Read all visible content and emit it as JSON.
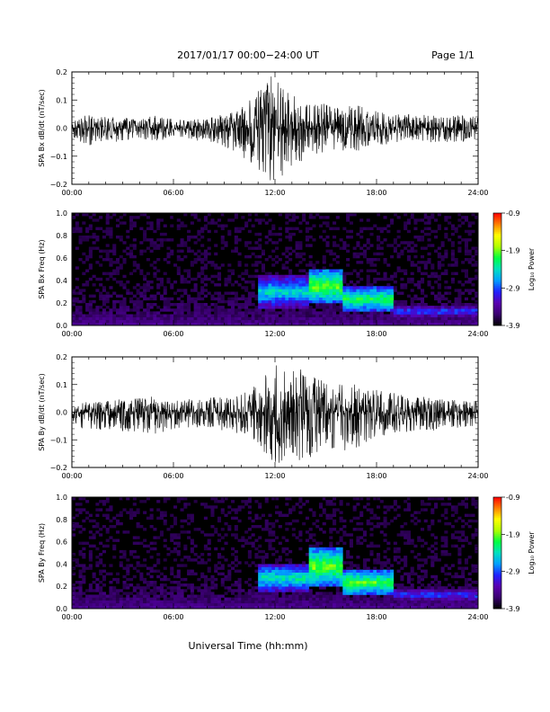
{
  "header": {
    "date_range": "2017/01/17  00:00−24:00 UT",
    "page": "Page 1/1"
  },
  "footer": {
    "xlabel": "Universal Time (hh:mm)"
  },
  "colors": {
    "trace": "#000000",
    "spec_background": "#000000",
    "colorbar": [
      "#000000",
      "#3a0070",
      "#5a00b0",
      "#2020ff",
      "#00a0ff",
      "#00e0c0",
      "#00ff40",
      "#b0ff00",
      "#ffff00",
      "#ff8000",
      "#ff0000"
    ]
  },
  "chart_data": [
    {
      "type": "line",
      "ylabel": "SPA Bx dB/dt (nT/sec)",
      "xlim": [
        0,
        24
      ],
      "ylim": [
        -0.2,
        0.2
      ],
      "x_ticks": [
        "00:00",
        "06:00",
        "12:00",
        "18:00",
        "24:00"
      ],
      "y_ticks": [
        "0.2",
        "0.1",
        "0.0",
        "−0.1",
        "−0.2"
      ],
      "envelope": {
        "hour": [
          0,
          1,
          2,
          3,
          4,
          5,
          6,
          7,
          8,
          9,
          10,
          11,
          12,
          13,
          14,
          15,
          16,
          17,
          18,
          19,
          20,
          21,
          22,
          23,
          24
        ],
        "max": [
          0.03,
          0.05,
          0.04,
          0.04,
          0.03,
          0.05,
          0.03,
          0.03,
          0.04,
          0.05,
          0.07,
          0.14,
          0.2,
          0.12,
          0.09,
          0.09,
          0.08,
          0.08,
          0.06,
          0.05,
          0.05,
          0.05,
          0.04,
          0.05,
          0.04
        ],
        "min": [
          -0.03,
          -0.07,
          -0.05,
          -0.05,
          -0.04,
          -0.05,
          -0.03,
          -0.04,
          -0.05,
          -0.07,
          -0.1,
          -0.18,
          -0.2,
          -0.14,
          -0.1,
          -0.09,
          -0.08,
          -0.08,
          -0.06,
          -0.06,
          -0.05,
          -0.05,
          -0.05,
          -0.05,
          -0.04
        ]
      }
    },
    {
      "type": "heatmap",
      "ylabel": "SPA Bx Freq (Hz)",
      "xlim": [
        0,
        24
      ],
      "ylim": [
        0,
        1.0
      ],
      "x_ticks": [
        "00:00",
        "06:00",
        "12:00",
        "18:00",
        "24:00"
      ],
      "y_ticks": [
        "1.0",
        "0.8",
        "0.6",
        "0.4",
        "0.2",
        "0.0"
      ],
      "colorbar": {
        "label": "Log₁₀ Power",
        "range": [
          -3.9,
          -0.9
        ],
        "ticks": [
          "-0.9",
          "-1.9",
          "-2.9",
          "-3.9"
        ]
      },
      "features": [
        {
          "t_start": 11,
          "t_end": 14,
          "f_low": 0.15,
          "f_high": 0.45,
          "level": -2.4
        },
        {
          "t_start": 14,
          "t_end": 16,
          "f_low": 0.2,
          "f_high": 0.5,
          "level": -1.9
        },
        {
          "t_start": 16,
          "t_end": 19,
          "f_low": 0.12,
          "f_high": 0.35,
          "level": -2.1
        },
        {
          "t_start": 19,
          "t_end": 24,
          "f_low": 0.05,
          "f_high": 0.2,
          "level": -2.9
        }
      ]
    },
    {
      "type": "line",
      "ylabel": "SPA By dB/dt (nT/sec)",
      "xlim": [
        0,
        24
      ],
      "ylim": [
        -0.2,
        0.2
      ],
      "x_ticks": [
        "00:00",
        "06:00",
        "12:00",
        "18:00",
        "24:00"
      ],
      "y_ticks": [
        "0.2",
        "0.1",
        "0.0",
        "−0.1",
        "−0.2"
      ],
      "envelope": {
        "hour": [
          0,
          1,
          2,
          3,
          4,
          5,
          6,
          7,
          8,
          9,
          10,
          11,
          12,
          13,
          14,
          15,
          16,
          17,
          18,
          19,
          20,
          21,
          22,
          23,
          24
        ],
        "max": [
          0.02,
          0.04,
          0.04,
          0.05,
          0.05,
          0.06,
          0.05,
          0.05,
          0.05,
          0.06,
          0.07,
          0.1,
          0.2,
          0.16,
          0.15,
          0.11,
          0.1,
          0.1,
          0.08,
          0.07,
          0.06,
          0.06,
          0.05,
          0.05,
          0.04
        ],
        "min": [
          -0.03,
          -0.08,
          -0.06,
          -0.07,
          -0.07,
          -0.08,
          -0.06,
          -0.06,
          -0.06,
          -0.07,
          -0.08,
          -0.12,
          -0.19,
          -0.18,
          -0.17,
          -0.15,
          -0.15,
          -0.13,
          -0.1,
          -0.08,
          -0.07,
          -0.07,
          -0.06,
          -0.06,
          -0.05
        ]
      }
    },
    {
      "type": "heatmap",
      "ylabel": "SPA By Freq (Hz)",
      "xlim": [
        0,
        24
      ],
      "ylim": [
        0,
        1.0
      ],
      "x_ticks": [
        "00:00",
        "06:00",
        "12:00",
        "18:00",
        "24:00"
      ],
      "y_ticks": [
        "1.0",
        "0.8",
        "0.6",
        "0.4",
        "0.2",
        "0.0"
      ],
      "colorbar": {
        "label": "Log₁₀ Power",
        "range": [
          -3.9,
          -0.9
        ],
        "ticks": [
          "-0.9",
          "-1.9",
          "-2.9",
          "-3.9"
        ]
      },
      "features": [
        {
          "t_start": 11,
          "t_end": 14,
          "f_low": 0.15,
          "f_high": 0.4,
          "level": -2.3
        },
        {
          "t_start": 14,
          "t_end": 16,
          "f_low": 0.2,
          "f_high": 0.55,
          "level": -1.9
        },
        {
          "t_start": 16,
          "t_end": 19,
          "f_low": 0.12,
          "f_high": 0.35,
          "level": -2.0
        },
        {
          "t_start": 19,
          "t_end": 24,
          "f_low": 0.05,
          "f_high": 0.2,
          "level": -2.9
        }
      ]
    }
  ]
}
